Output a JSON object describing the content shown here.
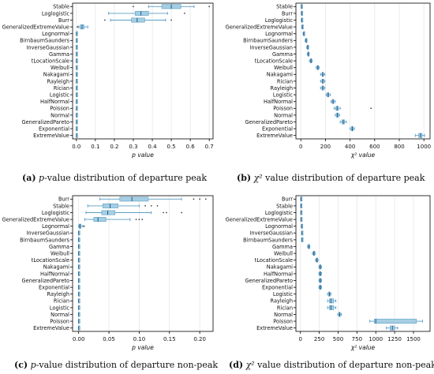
{
  "chart_data": [
    {
      "type": "boxplot",
      "xlabel": "p value",
      "xlim": [
        -0.02,
        0.72
      ],
      "xticks": [
        0.0,
        0.1,
        0.2,
        0.3,
        0.4,
        0.5,
        0.6,
        0.7
      ],
      "xtick_labels": [
        "0.0",
        "0.1",
        "0.2",
        "0.3",
        "0.4",
        "0.5",
        "0.6",
        "0.7"
      ],
      "categories": [
        "Stable",
        "Loglogistic",
        "Burr",
        "GeneralizedExtremeValue",
        "Lognormal",
        "BirnbaumSaunders",
        "InverseGaussian",
        "Gamma",
        "tLocationScale",
        "Weibull",
        "Nakagami",
        "Rayleigh",
        "Rician",
        "Logistic",
        "HalfNormal",
        "Poisson",
        "Normal",
        "GeneralizedPareto",
        "Exponential",
        "ExtremeValue"
      ],
      "boxes": [
        {
          "min": 0.38,
          "q1": 0.45,
          "median": 0.5,
          "q3": 0.55,
          "max": 0.62,
          "outliers": [
            0.3,
            0.7
          ]
        },
        {
          "min": 0.17,
          "q1": 0.31,
          "median": 0.34,
          "q3": 0.38,
          "max": 0.48,
          "outliers": [
            0.57
          ]
        },
        {
          "min": 0.18,
          "q1": 0.29,
          "median": 0.32,
          "q3": 0.36,
          "max": 0.47,
          "outliers": [
            0.15,
            0.5
          ]
        },
        {
          "min": 0.01,
          "q1": 0.02,
          "median": 0.03,
          "q3": 0.04,
          "max": 0.06,
          "outliers": [
            0.005
          ]
        },
        {
          "min": 0.0,
          "q1": 0.0,
          "median": 0.0,
          "q3": 0.001,
          "max": 0.002,
          "outliers": []
        },
        {
          "min": 0.0,
          "q1": 0.0,
          "median": 0.0,
          "q3": 0.001,
          "max": 0.002,
          "outliers": []
        },
        {
          "min": 0.0,
          "q1": 0.0,
          "median": 0.0,
          "q3": 0.001,
          "max": 0.002,
          "outliers": []
        },
        {
          "min": 0.0,
          "q1": 0.0,
          "median": 0.0,
          "q3": 0.001,
          "max": 0.002,
          "outliers": []
        },
        {
          "min": 0.0,
          "q1": 0.0,
          "median": 0.0,
          "q3": 0.001,
          "max": 0.002,
          "outliers": []
        },
        {
          "min": 0.0,
          "q1": 0.0,
          "median": 0.0,
          "q3": 0.001,
          "max": 0.002,
          "outliers": []
        },
        {
          "min": 0.0,
          "q1": 0.0,
          "median": 0.0,
          "q3": 0.001,
          "max": 0.002,
          "outliers": []
        },
        {
          "min": 0.0,
          "q1": 0.0,
          "median": 0.0,
          "q3": 0.001,
          "max": 0.002,
          "outliers": []
        },
        {
          "min": 0.0,
          "q1": 0.0,
          "median": 0.0,
          "q3": 0.001,
          "max": 0.002,
          "outliers": []
        },
        {
          "min": 0.0,
          "q1": 0.0,
          "median": 0.0,
          "q3": 0.001,
          "max": 0.002,
          "outliers": []
        },
        {
          "min": 0.0,
          "q1": 0.0,
          "median": 0.0,
          "q3": 0.001,
          "max": 0.002,
          "outliers": []
        },
        {
          "min": 0.0,
          "q1": 0.0,
          "median": 0.0,
          "q3": 0.001,
          "max": 0.002,
          "outliers": []
        },
        {
          "min": 0.0,
          "q1": 0.0,
          "median": 0.0,
          "q3": 0.001,
          "max": 0.002,
          "outliers": []
        },
        {
          "min": 0.0,
          "q1": 0.0,
          "median": 0.0,
          "q3": 0.001,
          "max": 0.002,
          "outliers": []
        },
        {
          "min": 0.0,
          "q1": 0.0,
          "median": 0.0,
          "q3": 0.001,
          "max": 0.002,
          "outliers": []
        },
        {
          "min": 0.0,
          "q1": 0.0,
          "median": 0.0,
          "q3": 0.001,
          "max": 0.002,
          "outliers": []
        }
      ],
      "grid": true,
      "caption": {
        "tag": "(a)",
        "symbol": "p",
        "text": "-value distribution of departure peak"
      }
    },
    {
      "type": "boxplot",
      "xlabel": "χ² value",
      "xlim": [
        -40,
        1050
      ],
      "xticks": [
        0,
        200,
        400,
        600,
        800,
        1000
      ],
      "xtick_labels": [
        "0",
        "200",
        "400",
        "600",
        "800",
        "1000"
      ],
      "categories": [
        "Stable",
        "Burr",
        "Loglogistic",
        "GeneralizedExtremeValue",
        "Lognormal",
        "BirnbaumSaunders",
        "InverseGaussian",
        "Gamma",
        "tLocationScale",
        "Weibull",
        "Nakagami",
        "Rician",
        "Rayleigh",
        "Logistic",
        "HalfNormal",
        "Poisson",
        "Normal",
        "GeneralizedPareto",
        "Exponential",
        "ExtremeValue"
      ],
      "boxes": [
        {
          "min": 3,
          "q1": 4,
          "median": 5,
          "q3": 6,
          "max": 8,
          "outliers": []
        },
        {
          "min": 4,
          "q1": 6,
          "median": 7,
          "q3": 8,
          "max": 10,
          "outliers": []
        },
        {
          "min": 5,
          "q1": 7,
          "median": 8,
          "q3": 9,
          "max": 11,
          "outliers": []
        },
        {
          "min": 8,
          "q1": 10,
          "median": 12,
          "q3": 14,
          "max": 16,
          "outliers": []
        },
        {
          "min": 18,
          "q1": 22,
          "median": 24,
          "q3": 27,
          "max": 30,
          "outliers": []
        },
        {
          "min": 35,
          "q1": 40,
          "median": 43,
          "q3": 46,
          "max": 50,
          "outliers": []
        },
        {
          "min": 48,
          "q1": 53,
          "median": 56,
          "q3": 59,
          "max": 64,
          "outliers": []
        },
        {
          "min": 52,
          "q1": 58,
          "median": 60,
          "q3": 63,
          "max": 68,
          "outliers": []
        },
        {
          "min": 70,
          "q1": 78,
          "median": 82,
          "q3": 86,
          "max": 92,
          "outliers": []
        },
        {
          "min": 125,
          "q1": 133,
          "median": 138,
          "q3": 143,
          "max": 150,
          "outliers": []
        },
        {
          "min": 160,
          "q1": 172,
          "median": 178,
          "q3": 184,
          "max": 195,
          "outliers": []
        },
        {
          "min": 160,
          "q1": 172,
          "median": 178,
          "q3": 185,
          "max": 195,
          "outliers": []
        },
        {
          "min": 160,
          "q1": 172,
          "median": 178,
          "q3": 185,
          "max": 195,
          "outliers": []
        },
        {
          "min": 205,
          "q1": 215,
          "median": 222,
          "q3": 228,
          "max": 240,
          "outliers": []
        },
        {
          "min": 245,
          "q1": 255,
          "median": 262,
          "q3": 268,
          "max": 280,
          "outliers": []
        },
        {
          "min": 270,
          "q1": 285,
          "median": 295,
          "q3": 305,
          "max": 320,
          "outliers": [
            570
          ]
        },
        {
          "min": 280,
          "q1": 290,
          "median": 298,
          "q3": 305,
          "max": 315,
          "outliers": []
        },
        {
          "min": 320,
          "q1": 335,
          "median": 345,
          "q3": 355,
          "max": 370,
          "outliers": []
        },
        {
          "min": 400,
          "q1": 410,
          "median": 418,
          "q3": 425,
          "max": 435,
          "outliers": []
        },
        {
          "min": 930,
          "q1": 958,
          "median": 972,
          "q3": 985,
          "max": 1005,
          "outliers": []
        }
      ],
      "grid": true,
      "caption": {
        "tag": "(b)",
        "symbol": "χ²",
        "text": " value distribution of departure peak"
      }
    },
    {
      "type": "boxplot",
      "xlabel": "p value",
      "xlim": [
        -0.01,
        0.222
      ],
      "xticks": [
        0.0,
        0.05,
        0.1,
        0.15,
        0.2
      ],
      "xtick_labels": [
        "0.00",
        "0.05",
        "0.10",
        "0.15",
        "0.20"
      ],
      "categories": [
        "Burr",
        "Stable",
        "Loglogistic",
        "GeneralizedExtremeValue",
        "Lognormal",
        "InverseGaussian",
        "BirnbaumSaunders",
        "Gamma",
        "Weibull",
        "tLocationScale",
        "Nakagami",
        "HalfNormal",
        "GeneralizedPareto",
        "Exponential",
        "Rayleigh",
        "Rician",
        "Logistic",
        "Normal",
        "Poisson",
        "ExtremeValue"
      ],
      "boxes": [
        {
          "min": 0.035,
          "q1": 0.068,
          "median": 0.088,
          "q3": 0.115,
          "max": 0.17,
          "outliers": [
            0.19,
            0.2,
            0.21
          ]
        },
        {
          "min": 0.015,
          "q1": 0.04,
          "median": 0.052,
          "q3": 0.065,
          "max": 0.1,
          "outliers": [
            0.11,
            0.12,
            0.13
          ]
        },
        {
          "min": 0.012,
          "q1": 0.038,
          "median": 0.048,
          "q3": 0.06,
          "max": 0.12,
          "outliers": [
            0.14,
            0.145,
            0.17
          ]
        },
        {
          "min": 0.01,
          "q1": 0.025,
          "median": 0.032,
          "q3": 0.045,
          "max": 0.085,
          "outliers": [
            0.095,
            0.1,
            0.105
          ]
        },
        {
          "min": 0.0,
          "q1": 0.001,
          "median": 0.002,
          "q3": 0.004,
          "max": 0.007,
          "outliers": [
            0.009
          ]
        },
        {
          "min": 0.0,
          "q1": 0.0,
          "median": 0.0,
          "q3": 0.0005,
          "max": 0.001,
          "outliers": []
        },
        {
          "min": 0.0,
          "q1": 0.0,
          "median": 0.0,
          "q3": 0.0005,
          "max": 0.001,
          "outliers": []
        },
        {
          "min": 0.0,
          "q1": 0.0,
          "median": 0.0,
          "q3": 0.0005,
          "max": 0.001,
          "outliers": []
        },
        {
          "min": 0.0,
          "q1": 0.0,
          "median": 0.0,
          "q3": 0.0005,
          "max": 0.001,
          "outliers": []
        },
        {
          "min": 0.0,
          "q1": 0.0,
          "median": 0.0,
          "q3": 0.0005,
          "max": 0.001,
          "outliers": []
        },
        {
          "min": 0.0,
          "q1": 0.0,
          "median": 0.0,
          "q3": 0.0005,
          "max": 0.001,
          "outliers": []
        },
        {
          "min": 0.0,
          "q1": 0.0,
          "median": 0.0,
          "q3": 0.0005,
          "max": 0.001,
          "outliers": []
        },
        {
          "min": 0.0,
          "q1": 0.0,
          "median": 0.0,
          "q3": 0.0005,
          "max": 0.001,
          "outliers": []
        },
        {
          "min": 0.0,
          "q1": 0.0,
          "median": 0.0,
          "q3": 0.0005,
          "max": 0.001,
          "outliers": []
        },
        {
          "min": 0.0,
          "q1": 0.0,
          "median": 0.0,
          "q3": 0.0005,
          "max": 0.001,
          "outliers": []
        },
        {
          "min": 0.0,
          "q1": 0.0,
          "median": 0.0,
          "q3": 0.0005,
          "max": 0.001,
          "outliers": []
        },
        {
          "min": 0.0,
          "q1": 0.0,
          "median": 0.0,
          "q3": 0.0005,
          "max": 0.001,
          "outliers": []
        },
        {
          "min": 0.0,
          "q1": 0.0,
          "median": 0.0,
          "q3": 0.0005,
          "max": 0.001,
          "outliers": []
        },
        {
          "min": 0.0,
          "q1": 0.0,
          "median": 0.0,
          "q3": 0.0005,
          "max": 0.001,
          "outliers": []
        },
        {
          "min": 0.0,
          "q1": 0.0,
          "median": 0.0,
          "q3": 0.0005,
          "max": 0.001,
          "outliers": []
        }
      ],
      "grid": true,
      "caption": {
        "tag": "(c)",
        "symbol": "p",
        "text": "-value distribution of departure non-peak"
      }
    },
    {
      "type": "boxplot",
      "xlabel": "χ² value",
      "xlim": [
        -60,
        1720
      ],
      "xticks": [
        0,
        250,
        500,
        750,
        1000,
        1250,
        1500
      ],
      "xtick_labels": [
        "0",
        "250",
        "500",
        "750",
        "1000",
        "1250",
        "1500"
      ],
      "categories": [
        "Burr",
        "Stable",
        "Loglogistic",
        "GeneralizedExtremeValue",
        "Lognormal",
        "InverseGaussian",
        "BirnbaumSaunders",
        "Gamma",
        "Weibull",
        "tLocationScale",
        "Nakagami",
        "HalfNormal",
        "GeneralizedPareto",
        "Exponential",
        "Logistic",
        "Rayleigh",
        "Rician",
        "Normal",
        "Poisson",
        "ExtremeValue"
      ],
      "boxes": [
        {
          "min": 4,
          "q1": 6,
          "median": 7,
          "q3": 8,
          "max": 10,
          "outliers": []
        },
        {
          "min": 4,
          "q1": 6,
          "median": 7,
          "q3": 8,
          "max": 10,
          "outliers": []
        },
        {
          "min": 5,
          "q1": 7,
          "median": 8,
          "q3": 9,
          "max": 11,
          "outliers": []
        },
        {
          "min": 6,
          "q1": 8,
          "median": 9,
          "q3": 10,
          "max": 12,
          "outliers": []
        },
        {
          "min": 12,
          "q1": 15,
          "median": 17,
          "q3": 19,
          "max": 22,
          "outliers": []
        },
        {
          "min": 15,
          "q1": 18,
          "median": 20,
          "q3": 22,
          "max": 25,
          "outliers": []
        },
        {
          "min": 16,
          "q1": 19,
          "median": 21,
          "q3": 23,
          "max": 26,
          "outliers": []
        },
        {
          "min": 95,
          "q1": 105,
          "median": 110,
          "q3": 115,
          "max": 125,
          "outliers": []
        },
        {
          "min": 160,
          "q1": 172,
          "median": 178,
          "q3": 184,
          "max": 195,
          "outliers": []
        },
        {
          "min": 200,
          "q1": 212,
          "median": 218,
          "q3": 224,
          "max": 235,
          "outliers": []
        },
        {
          "min": 245,
          "q1": 255,
          "median": 262,
          "q3": 268,
          "max": 280,
          "outliers": []
        },
        {
          "min": 245,
          "q1": 255,
          "median": 262,
          "q3": 268,
          "max": 280,
          "outliers": []
        },
        {
          "min": 245,
          "q1": 256,
          "median": 262,
          "q3": 269,
          "max": 280,
          "outliers": []
        },
        {
          "min": 245,
          "q1": 256,
          "median": 262,
          "q3": 269,
          "max": 280,
          "outliers": []
        },
        {
          "min": 360,
          "q1": 375,
          "median": 385,
          "q3": 392,
          "max": 405,
          "outliers": []
        },
        {
          "min": 360,
          "q1": 385,
          "median": 405,
          "q3": 440,
          "max": 470,
          "outliers": []
        },
        {
          "min": 360,
          "q1": 385,
          "median": 405,
          "q3": 440,
          "max": 470,
          "outliers": []
        },
        {
          "min": 495,
          "q1": 510,
          "median": 520,
          "q3": 528,
          "max": 545,
          "outliers": []
        },
        {
          "min": 920,
          "q1": 980,
          "median": 1000,
          "q3": 1540,
          "max": 1620,
          "outliers": []
        },
        {
          "min": 1140,
          "q1": 1190,
          "median": 1220,
          "q3": 1250,
          "max": 1290,
          "outliers": []
        }
      ],
      "grid": true,
      "caption": {
        "tag": "(d)",
        "symbol": "χ²",
        "text": " value distribution of departure non-peak"
      }
    }
  ],
  "style": {
    "box_fill": "#a6cee3",
    "box_edge": "#5a9ec4",
    "median": "#1f5a8a",
    "grid": "#e6e6e6",
    "axis": "#000000"
  }
}
